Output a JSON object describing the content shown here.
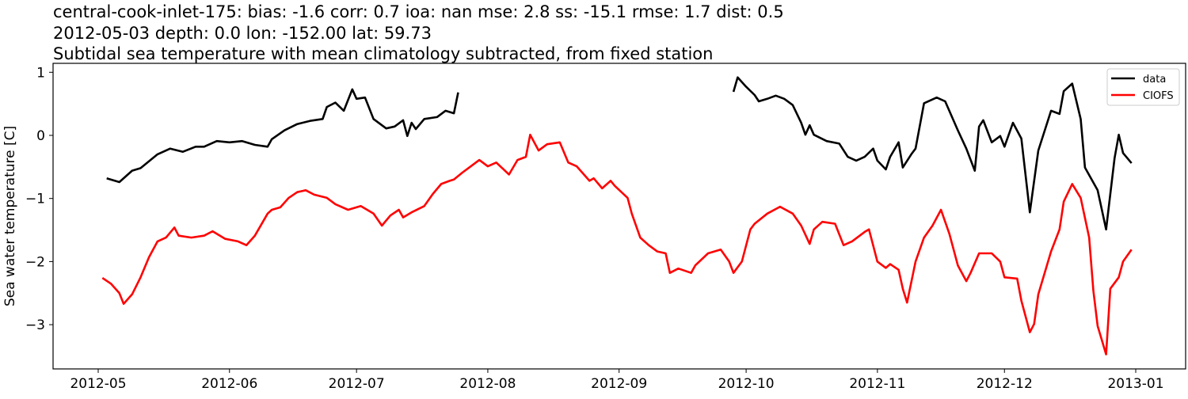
{
  "chart_data": {
    "type": "line",
    "title_lines": [
      "central-cook-inlet-175: bias: -1.6  corr: 0.7  ioa: nan  mse: 2.8  ss: -15.1  rmse: 1.7  dist: 0.5",
      "2012-05-03 depth: 0.0 lon: -152.00 lat: 59.73",
      "Subtidal sea temperature with mean climatology subtracted, from fixed station"
    ],
    "xlabel": "",
    "ylabel": "Sea water temperature [C]",
    "xlim": [
      "2012-04-20",
      "2013-01-12"
    ],
    "ylim": [
      -3.7,
      1.14
    ],
    "xticks": [
      "2012-05",
      "2012-06",
      "2012-07",
      "2012-08",
      "2012-09",
      "2012-10",
      "2012-11",
      "2012-12",
      "2013-01"
    ],
    "xtick_dates": [
      "2012-05-01",
      "2012-06-01",
      "2012-07-01",
      "2012-08-01",
      "2012-09-01",
      "2012-10-01",
      "2012-11-01",
      "2012-12-01",
      "2013-01-01"
    ],
    "yticks": [
      1,
      0,
      -1,
      -2,
      -3
    ],
    "ytick_labels": [
      "1",
      "0",
      "−1",
      "−2",
      "−3"
    ],
    "grid": false,
    "legend_placement": "top-right",
    "series": [
      {
        "name": "data",
        "color": "#000000",
        "segments": [
          [
            [
              "2012-05-03",
              -0.68
            ],
            [
              "2012-05-06",
              -0.74
            ],
            [
              "2012-05-09",
              -0.56
            ],
            [
              "2012-05-11",
              -0.52
            ],
            [
              "2012-05-15",
              -0.3
            ],
            [
              "2012-05-18",
              -0.21
            ],
            [
              "2012-05-21",
              -0.26
            ],
            [
              "2012-05-24",
              -0.18
            ],
            [
              "2012-05-26",
              -0.18
            ],
            [
              "2012-05-29",
              -0.09
            ],
            [
              "2012-06-01",
              -0.11
            ],
            [
              "2012-06-04",
              -0.09
            ],
            [
              "2012-06-07",
              -0.15
            ],
            [
              "2012-06-10",
              -0.18
            ],
            [
              "2012-06-11",
              -0.06
            ],
            [
              "2012-06-14",
              0.08
            ],
            [
              "2012-06-17",
              0.18
            ],
            [
              "2012-06-20",
              0.23
            ],
            [
              "2012-06-23",
              0.26
            ],
            [
              "2012-06-24",
              0.45
            ],
            [
              "2012-06-26",
              0.52
            ],
            [
              "2012-06-28",
              0.39
            ],
            [
              "2012-06-30",
              0.73
            ],
            [
              "2012-07-01",
              0.58
            ],
            [
              "2012-07-03",
              0.6
            ],
            [
              "2012-07-05",
              0.26
            ],
            [
              "2012-07-07",
              0.16
            ],
            [
              "2012-07-08",
              0.11
            ],
            [
              "2012-07-10",
              0.14
            ],
            [
              "2012-07-12",
              0.24
            ],
            [
              "2012-07-13",
              -0.01
            ],
            [
              "2012-07-14",
              0.2
            ],
            [
              "2012-07-15",
              0.1
            ],
            [
              "2012-07-17",
              0.26
            ],
            [
              "2012-07-20",
              0.29
            ],
            [
              "2012-07-22",
              0.39
            ],
            [
              "2012-07-24",
              0.35
            ],
            [
              "2012-07-25",
              0.68
            ]
          ],
          [
            [
              "2012-09-28",
              0.69
            ],
            [
              "2012-09-29",
              0.92
            ],
            [
              "2012-10-01",
              0.77
            ],
            [
              "2012-10-03",
              0.64
            ],
            [
              "2012-10-04",
              0.54
            ],
            [
              "2012-10-06",
              0.58
            ],
            [
              "2012-10-08",
              0.63
            ],
            [
              "2012-10-10",
              0.58
            ],
            [
              "2012-10-12",
              0.48
            ],
            [
              "2012-10-14",
              0.2
            ],
            [
              "2012-10-15",
              0.01
            ],
            [
              "2012-10-16",
              0.16
            ],
            [
              "2012-10-17",
              0.01
            ],
            [
              "2012-10-20",
              -0.09
            ],
            [
              "2012-10-23",
              -0.13
            ],
            [
              "2012-10-25",
              -0.34
            ],
            [
              "2012-10-27",
              -0.4
            ],
            [
              "2012-10-29",
              -0.34
            ],
            [
              "2012-10-31",
              -0.21
            ],
            [
              "2012-11-01",
              -0.4
            ],
            [
              "2012-11-03",
              -0.54
            ],
            [
              "2012-11-04",
              -0.34
            ],
            [
              "2012-11-06",
              -0.11
            ],
            [
              "2012-11-07",
              -0.51
            ],
            [
              "2012-11-09",
              -0.3
            ],
            [
              "2012-11-10",
              -0.21
            ],
            [
              "2012-11-12",
              0.51
            ],
            [
              "2012-11-15",
              0.6
            ],
            [
              "2012-11-17",
              0.54
            ],
            [
              "2012-11-20",
              0.08
            ],
            [
              "2012-11-22",
              -0.21
            ],
            [
              "2012-11-24",
              -0.56
            ],
            [
              "2012-11-25",
              0.14
            ],
            [
              "2012-11-26",
              0.24
            ],
            [
              "2012-11-28",
              -0.11
            ],
            [
              "2012-11-30",
              -0.01
            ],
            [
              "2012-12-01",
              -0.18
            ],
            [
              "2012-12-03",
              0.2
            ],
            [
              "2012-12-05",
              -0.05
            ],
            [
              "2012-12-07",
              -1.22
            ],
            [
              "2012-12-09",
              -0.24
            ],
            [
              "2012-12-12",
              0.39
            ],
            [
              "2012-12-14",
              0.34
            ],
            [
              "2012-12-15",
              0.7
            ],
            [
              "2012-12-17",
              0.82
            ],
            [
              "2012-12-19",
              0.26
            ],
            [
              "2012-12-20",
              -0.51
            ],
            [
              "2012-12-23",
              -0.87
            ],
            [
              "2012-12-25",
              -1.49
            ],
            [
              "2012-12-27",
              -0.36
            ],
            [
              "2012-12-28",
              0.01
            ],
            [
              "2012-12-29",
              -0.28
            ],
            [
              "2012-12-31",
              -0.44
            ]
          ]
        ]
      },
      {
        "name": "CIOFS",
        "color": "#ff0000",
        "segments": [
          [
            [
              "2012-05-02",
              -2.26
            ],
            [
              "2012-05-04",
              -2.35
            ],
            [
              "2012-05-06",
              -2.5
            ],
            [
              "2012-05-07",
              -2.67
            ],
            [
              "2012-05-09",
              -2.52
            ],
            [
              "2012-05-11",
              -2.25
            ],
            [
              "2012-05-13",
              -1.93
            ],
            [
              "2012-05-15",
              -1.68
            ],
            [
              "2012-05-17",
              -1.62
            ],
            [
              "2012-05-19",
              -1.46
            ],
            [
              "2012-05-20",
              -1.59
            ],
            [
              "2012-05-23",
              -1.62
            ],
            [
              "2012-05-26",
              -1.59
            ],
            [
              "2012-05-28",
              -1.52
            ],
            [
              "2012-05-31",
              -1.64
            ],
            [
              "2012-06-03",
              -1.68
            ],
            [
              "2012-06-05",
              -1.74
            ],
            [
              "2012-06-07",
              -1.59
            ],
            [
              "2012-06-10",
              -1.24
            ],
            [
              "2012-06-11",
              -1.18
            ],
            [
              "2012-06-13",
              -1.14
            ],
            [
              "2012-06-15",
              -0.99
            ],
            [
              "2012-06-17",
              -0.9
            ],
            [
              "2012-06-19",
              -0.87
            ],
            [
              "2012-06-21",
              -0.94
            ],
            [
              "2012-06-24",
              -0.99
            ],
            [
              "2012-06-26",
              -1.09
            ],
            [
              "2012-06-29",
              -1.18
            ],
            [
              "2012-07-02",
              -1.12
            ],
            [
              "2012-07-05",
              -1.24
            ],
            [
              "2012-07-07",
              -1.43
            ],
            [
              "2012-07-09",
              -1.27
            ],
            [
              "2012-07-11",
              -1.18
            ],
            [
              "2012-07-12",
              -1.3
            ],
            [
              "2012-07-14",
              -1.22
            ],
            [
              "2012-07-17",
              -1.12
            ],
            [
              "2012-07-19",
              -0.93
            ],
            [
              "2012-07-21",
              -0.77
            ],
            [
              "2012-07-23",
              -0.72
            ],
            [
              "2012-07-24",
              -0.7
            ],
            [
              "2012-07-26",
              -0.59
            ],
            [
              "2012-07-28",
              -0.49
            ],
            [
              "2012-07-30",
              -0.39
            ],
            [
              "2012-08-01",
              -0.49
            ],
            [
              "2012-08-03",
              -0.43
            ],
            [
              "2012-08-06",
              -0.62
            ],
            [
              "2012-08-08",
              -0.39
            ],
            [
              "2012-08-10",
              -0.34
            ],
            [
              "2012-08-11",
              0.01
            ],
            [
              "2012-08-13",
              -0.24
            ],
            [
              "2012-08-15",
              -0.14
            ],
            [
              "2012-08-18",
              -0.11
            ],
            [
              "2012-08-20",
              -0.43
            ],
            [
              "2012-08-22",
              -0.49
            ],
            [
              "2012-08-25",
              -0.72
            ],
            [
              "2012-08-26",
              -0.68
            ],
            [
              "2012-08-28",
              -0.84
            ],
            [
              "2012-08-30",
              -0.72
            ],
            [
              "2012-08-31",
              -0.8
            ],
            [
              "2012-09-03",
              -0.99
            ],
            [
              "2012-09-04",
              -1.24
            ],
            [
              "2012-09-06",
              -1.62
            ],
            [
              "2012-09-08",
              -1.74
            ],
            [
              "2012-09-10",
              -1.84
            ],
            [
              "2012-09-12",
              -1.87
            ],
            [
              "2012-09-13",
              -2.18
            ],
            [
              "2012-09-15",
              -2.11
            ],
            [
              "2012-09-18",
              -2.18
            ],
            [
              "2012-09-19",
              -2.06
            ],
            [
              "2012-09-22",
              -1.87
            ],
            [
              "2012-09-25",
              -1.81
            ],
            [
              "2012-09-27",
              -2.0
            ],
            [
              "2012-09-28",
              -2.18
            ],
            [
              "2012-09-30",
              -2.0
            ],
            [
              "2012-10-02",
              -1.49
            ],
            [
              "2012-10-03",
              -1.4
            ],
            [
              "2012-10-06",
              -1.24
            ],
            [
              "2012-10-09",
              -1.13
            ],
            [
              "2012-10-12",
              -1.24
            ],
            [
              "2012-10-14",
              -1.43
            ],
            [
              "2012-10-16",
              -1.72
            ],
            [
              "2012-10-17",
              -1.49
            ],
            [
              "2012-10-19",
              -1.37
            ],
            [
              "2012-10-22",
              -1.4
            ],
            [
              "2012-10-24",
              -1.74
            ],
            [
              "2012-10-26",
              -1.68
            ],
            [
              "2012-10-29",
              -1.53
            ],
            [
              "2012-10-30",
              -1.49
            ],
            [
              "2012-11-01",
              -2.0
            ],
            [
              "2012-11-03",
              -2.1
            ],
            [
              "2012-11-04",
              -2.04
            ],
            [
              "2012-11-06",
              -2.13
            ],
            [
              "2012-11-07",
              -2.43
            ],
            [
              "2012-11-08",
              -2.65
            ],
            [
              "2012-11-10",
              -2.0
            ],
            [
              "2012-11-12",
              -1.62
            ],
            [
              "2012-11-14",
              -1.43
            ],
            [
              "2012-11-16",
              -1.18
            ],
            [
              "2012-11-18",
              -1.56
            ],
            [
              "2012-11-20",
              -2.06
            ],
            [
              "2012-11-22",
              -2.31
            ],
            [
              "2012-11-23",
              -2.18
            ],
            [
              "2012-11-25",
              -1.87
            ],
            [
              "2012-11-28",
              -1.87
            ],
            [
              "2012-11-30",
              -2.0
            ],
            [
              "2012-12-01",
              -2.25
            ],
            [
              "2012-12-04",
              -2.27
            ],
            [
              "2012-12-05",
              -2.62
            ],
            [
              "2012-12-07",
              -3.12
            ],
            [
              "2012-12-08",
              -2.99
            ],
            [
              "2012-12-09",
              -2.52
            ],
            [
              "2012-12-12",
              -1.84
            ],
            [
              "2012-12-14",
              -1.49
            ],
            [
              "2012-12-15",
              -1.05
            ],
            [
              "2012-12-17",
              -0.77
            ],
            [
              "2012-12-19",
              -0.99
            ],
            [
              "2012-12-21",
              -1.62
            ],
            [
              "2012-12-22",
              -2.46
            ],
            [
              "2012-12-23",
              -3.02
            ],
            [
              "2012-12-25",
              -3.47
            ],
            [
              "2012-12-26",
              -2.43
            ],
            [
              "2012-12-28",
              -2.25
            ],
            [
              "2012-12-29",
              -2.0
            ],
            [
              "2012-12-31",
              -1.81
            ]
          ]
        ]
      }
    ]
  }
}
